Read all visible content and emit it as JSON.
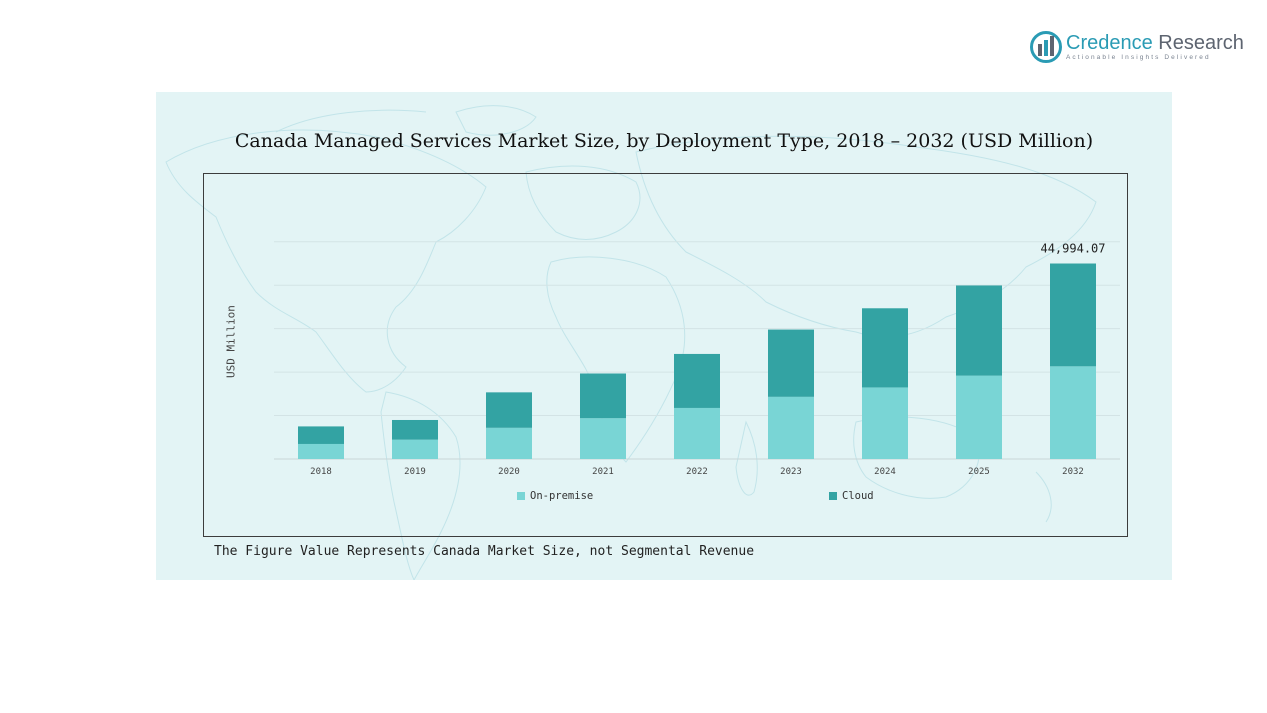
{
  "logo": {
    "name_accent": "Credence",
    "name_rest": " Research",
    "tagline": "Actionable Insights Delivered"
  },
  "colors": {
    "on_premise": "#79d5d5",
    "cloud": "#33a3a3",
    "panel_bg": "#e3f4f5",
    "brand_accent": "#2a9bb4"
  },
  "chart_data": {
    "type": "bar",
    "stacked": true,
    "title": "Canada Managed Services Market Size, by Deployment Type, 2018 – 2032 (USD Million)",
    "ylabel": "USD Million",
    "xlabel": "",
    "categories": [
      "2018",
      "2019",
      "2020",
      "2021",
      "2022",
      "2023",
      "2024",
      "2025",
      "2032"
    ],
    "series": [
      {
        "name": "On-premise",
        "values": [
          3460,
          4450,
          7180,
          9390,
          11750,
          14310,
          16470,
          19190,
          21330
        ]
      },
      {
        "name": "Cloud",
        "values": [
          4040,
          4530,
          8160,
          10290,
          12430,
          15480,
          18220,
          20750,
          23664.07
        ]
      }
    ],
    "ylim": [
      0,
      58000
    ],
    "annotation": {
      "category": "2032",
      "text": "44,994.07"
    },
    "grid": true,
    "legend": "bottom",
    "footnote": "The Figure Value Represents Canada Market Size, not Segmental Revenue"
  }
}
